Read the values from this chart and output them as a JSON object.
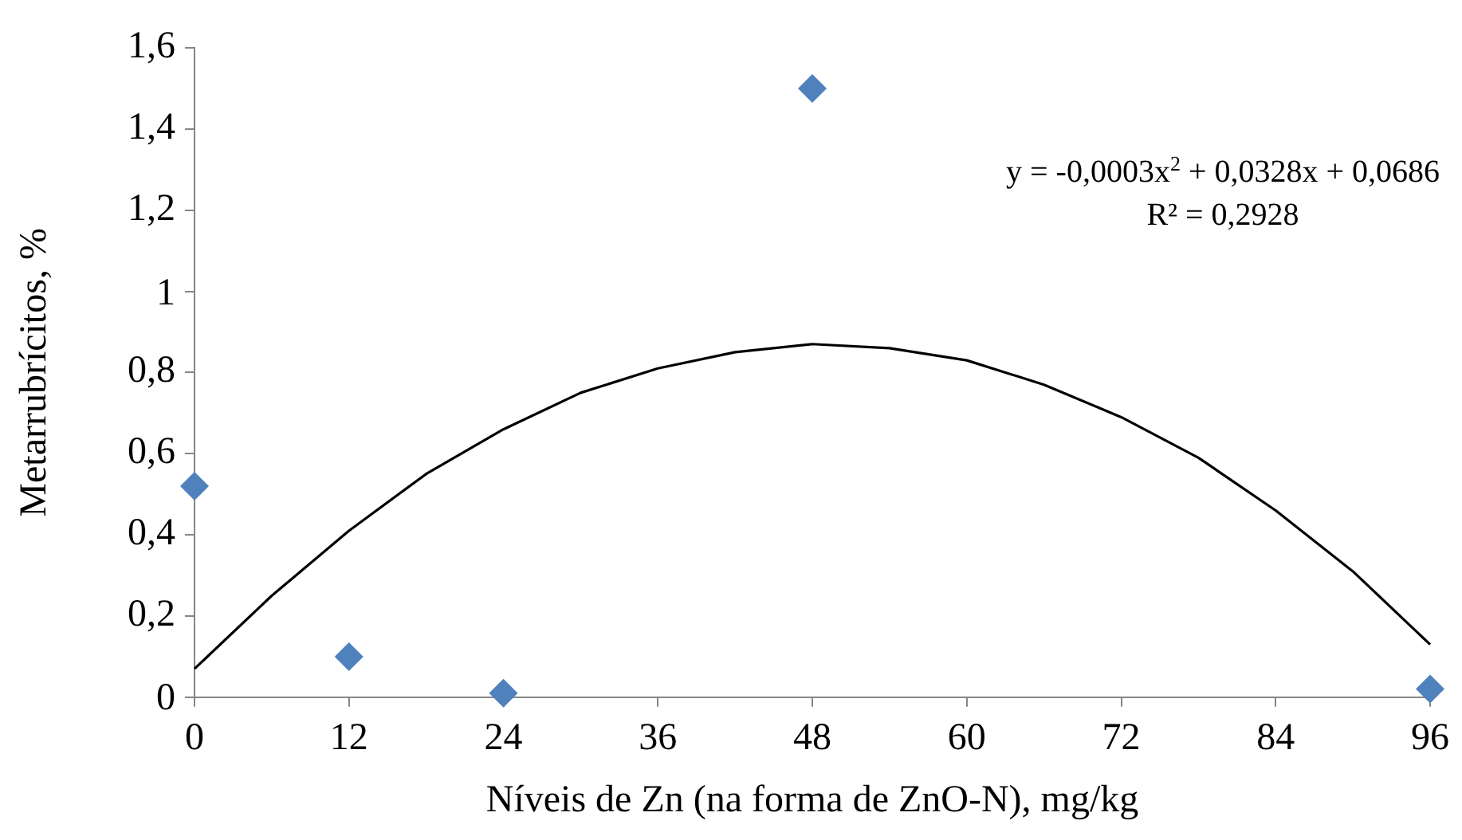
{
  "chart_data": {
    "type": "scatter",
    "xlabel": "Níveis de Zn (na forma de ZnO-N), mg/kg",
    "ylabel": "Metarrubrícitos, %",
    "series": [
      {
        "color": "#4f81bd",
        "x": [
          0,
          12,
          24,
          48,
          96
        ],
        "values": [
          0.52,
          0.1,
          0.01,
          1.5,
          0.02
        ],
        "marker": "diamond"
      },
      {
        "type": "line",
        "color": "#000000",
        "x": [
          0,
          6,
          12,
          18,
          24,
          30,
          36,
          42,
          48,
          54,
          60,
          66,
          72,
          78,
          84,
          90,
          96
        ],
        "values": [
          0.07,
          0.25,
          0.41,
          0.55,
          0.66,
          0.75,
          0.81,
          0.85,
          0.87,
          0.86,
          0.83,
          0.77,
          0.69,
          0.59,
          0.46,
          0.31,
          0.13
        ],
        "marker": "none",
        "line_style": "solid"
      }
    ],
    "xlim": [
      0,
      96
    ],
    "xticks": [
      0,
      12,
      24,
      36,
      48,
      60,
      72,
      84,
      96
    ],
    "ylim": [
      0,
      1.6
    ],
    "yticks": [
      0,
      {
        "value": 0.2,
        "label": "0,2"
      },
      {
        "value": 0.4,
        "label": "0,4"
      },
      {
        "value": 0.6,
        "label": "0,6"
      },
      {
        "value": 0.8,
        "label": "0,8"
      },
      1,
      {
        "value": 1.2,
        "label": "1,2"
      },
      {
        "value": 1.4,
        "label": "1,4"
      },
      {
        "value": 1.6,
        "label": "1,6"
      }
    ],
    "grid": false,
    "legend": false,
    "annotations": [
      "y = -0,0003x$^{2}$ + 0,0328x + 0,0686",
      "R² = 0,2928"
    ]
  }
}
